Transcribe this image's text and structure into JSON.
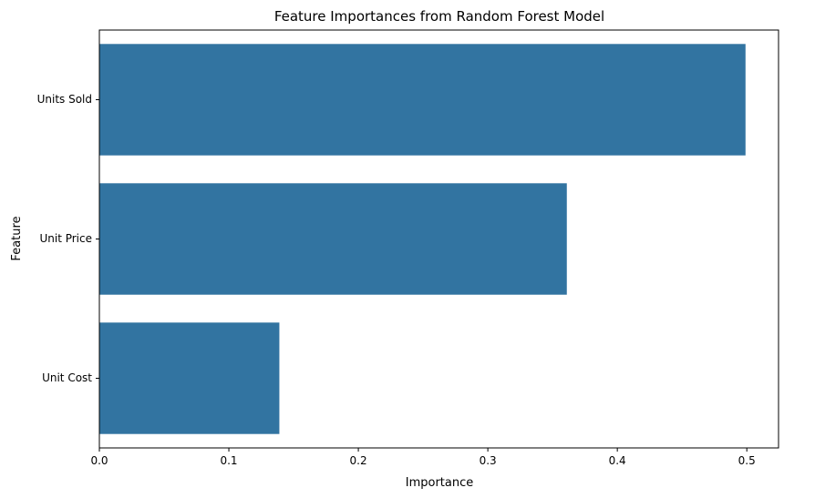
{
  "chart_data": {
    "type": "bar",
    "orientation": "horizontal",
    "title": "Feature Importances from Random Forest Model",
    "xlabel": "Importance",
    "ylabel": "Feature",
    "categories": [
      "Units Sold",
      "Unit Price",
      "Unit Cost"
    ],
    "values": [
      0.499,
      0.361,
      0.139
    ],
    "xlim": [
      0,
      0.5245
    ],
    "xticks": [
      0.0,
      0.1,
      0.2,
      0.3,
      0.4,
      0.5
    ],
    "xtick_labels": [
      "0.0",
      "0.1",
      "0.2",
      "0.3",
      "0.4",
      "0.5"
    ],
    "grid": false,
    "bar_color": "#3274a1"
  }
}
